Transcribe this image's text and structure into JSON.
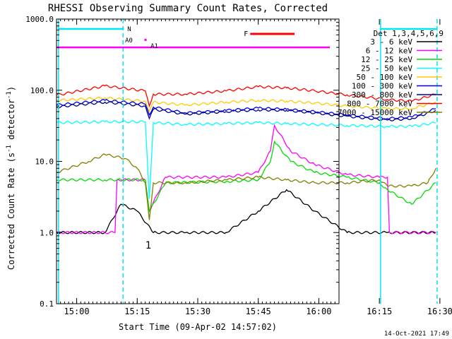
{
  "chart_data": {
    "type": "line",
    "title": "RHESSI Observing Summary Count Rates, Corrected",
    "xlabel": "Start Time (09-Apr-02 14:57:02)",
    "ylabel_main": "Corrected Count Rate (s",
    "ylabel_sup1": "-1",
    "ylabel_mid": " detector",
    "ylabel_sup2": "-1",
    "ylabel_end": ")",
    "y_scale": "log",
    "ylim": [
      0.1,
      1000
    ],
    "xlim_min": [
      -2,
      68
    ],
    "x_ticks": [
      {
        "t": 3,
        "label": "15:00"
      },
      {
        "t": 18,
        "label": "15:15"
      },
      {
        "t": 33,
        "label": "15:30"
      },
      {
        "t": 48,
        "label": "15:45"
      },
      {
        "t": 63,
        "label": "16:00"
      },
      {
        "t": 78,
        "label": "16:15"
      },
      {
        "t": 93,
        "label": "16:30"
      }
    ],
    "y_ticks": [
      {
        "v": 0.1,
        "label": "0.1"
      },
      {
        "v": 1,
        "label": "1.0"
      },
      {
        "v": 10,
        "label": "10.0"
      },
      {
        "v": 100,
        "label": "100.0"
      },
      {
        "v": 1000,
        "label": "1000.0"
      }
    ],
    "legend_title": "Det 1,3,4,5,6,9",
    "legend_position": "right",
    "series": [
      {
        "name": "3 - 6 keV",
        "color": "#000000",
        "x": [
          -2,
          10,
          14,
          18,
          22,
          30,
          40,
          48,
          55,
          62,
          70,
          80,
          92
        ],
        "y": [
          1,
          1,
          2.5,
          2,
          1,
          1,
          1,
          2,
          4,
          2,
          1,
          1,
          1
        ]
      },
      {
        "name": "6 - 12 keV",
        "color": "#ff00ff",
        "x": [
          -2,
          12.5,
          13,
          20,
          21,
          25,
          40,
          48,
          51,
          52,
          56,
          62,
          70,
          78,
          80,
          80.5,
          92
        ],
        "y": [
          1,
          1,
          5.5,
          5.5,
          2,
          6,
          6,
          7,
          14,
          32,
          14,
          9,
          6.5,
          6,
          6,
          1,
          1
        ]
      },
      {
        "name": "12 - 25 keV",
        "color": "#00dd00",
        "x": [
          -2,
          10,
          20,
          21,
          25,
          40,
          48,
          51,
          52,
          56,
          62,
          70,
          78,
          80,
          86,
          92
        ],
        "y": [
          5.5,
          5.5,
          5.5,
          2,
          5,
          5.2,
          5.5,
          10,
          19,
          10,
          7,
          6,
          5,
          4,
          2.5,
          5
        ]
      },
      {
        "name": "25 - 50 keV",
        "color": "#00ffff",
        "x": [
          -2,
          10,
          20,
          21,
          22,
          30,
          40,
          48,
          55,
          62,
          70,
          80,
          86,
          92
        ],
        "y": [
          35,
          36,
          36,
          3,
          35,
          33,
          34,
          35,
          34,
          33,
          32,
          31,
          31,
          35
        ]
      },
      {
        "name": "50 - 100 keV",
        "color": "#ffcc00",
        "x": [
          -2,
          10,
          20,
          21,
          22,
          30,
          40,
          48,
          55,
          62,
          70,
          80,
          86,
          92
        ],
        "y": [
          72,
          78,
          70,
          50,
          68,
          62,
          68,
          72,
          70,
          66,
          60,
          55,
          55,
          68
        ]
      },
      {
        "name": "100 - 300 keV",
        "color": "#0000ff",
        "x": [
          -2,
          10,
          20,
          21,
          22,
          30,
          40,
          48,
          55,
          62,
          70,
          80,
          86,
          92
        ],
        "y": [
          62,
          72,
          64,
          45,
          58,
          48,
          52,
          56,
          54,
          50,
          45,
          40,
          42,
          55
        ]
      },
      {
        "name": "300 - 800 keV",
        "color": "#000088",
        "x": [
          -2,
          10,
          20,
          21,
          22,
          30,
          40,
          48,
          55,
          62,
          70,
          80,
          86,
          92
        ],
        "y": [
          58,
          68,
          60,
          40,
          54,
          46,
          50,
          53,
          52,
          48,
          43,
          38,
          40,
          52
        ]
      },
      {
        "name": "800 - 7000 keV",
        "color": "#ff0000",
        "x": [
          -2,
          10,
          20,
          21,
          22,
          30,
          40,
          48,
          55,
          62,
          70,
          80,
          86,
          92
        ],
        "y": [
          85,
          115,
          98,
          60,
          88,
          88,
          98,
          112,
          108,
          98,
          86,
          74,
          70,
          88
        ]
      },
      {
        "name": "7000 - 15000 keV",
        "color": "#808000",
        "x": [
          -2,
          6,
          10,
          15,
          18,
          20,
          21,
          22,
          30,
          40,
          48,
          55,
          62,
          70,
          78,
          80,
          86,
          90,
          92
        ],
        "y": [
          7,
          10,
          12.5,
          11,
          8,
          5,
          1.5,
          5,
          5,
          5.5,
          6,
          5.5,
          5,
          5,
          5.5,
          4.5,
          4.5,
          5,
          8
        ]
      }
    ],
    "vertical_lines": [
      {
        "t": -1.5,
        "style": "solid"
      },
      {
        "t": 14.5,
        "style": "dashed"
      },
      {
        "t": 78.3,
        "style": "solid"
      },
      {
        "t": 92.3,
        "style": "dashed"
      }
    ],
    "annotations": {
      "night_label": "N",
      "flare_label": "F",
      "attenuator_labels": [
        "A0",
        "A1"
      ],
      "decimation_label": "1",
      "attenuator_level": 400,
      "night_segments": [
        [
          -1.5,
          14.5
        ],
        [
          78.3,
          92.3
        ]
      ],
      "flare_segment": [
        46,
        57
      ]
    },
    "timestamp": "14-Oct-2021 17:49"
  }
}
